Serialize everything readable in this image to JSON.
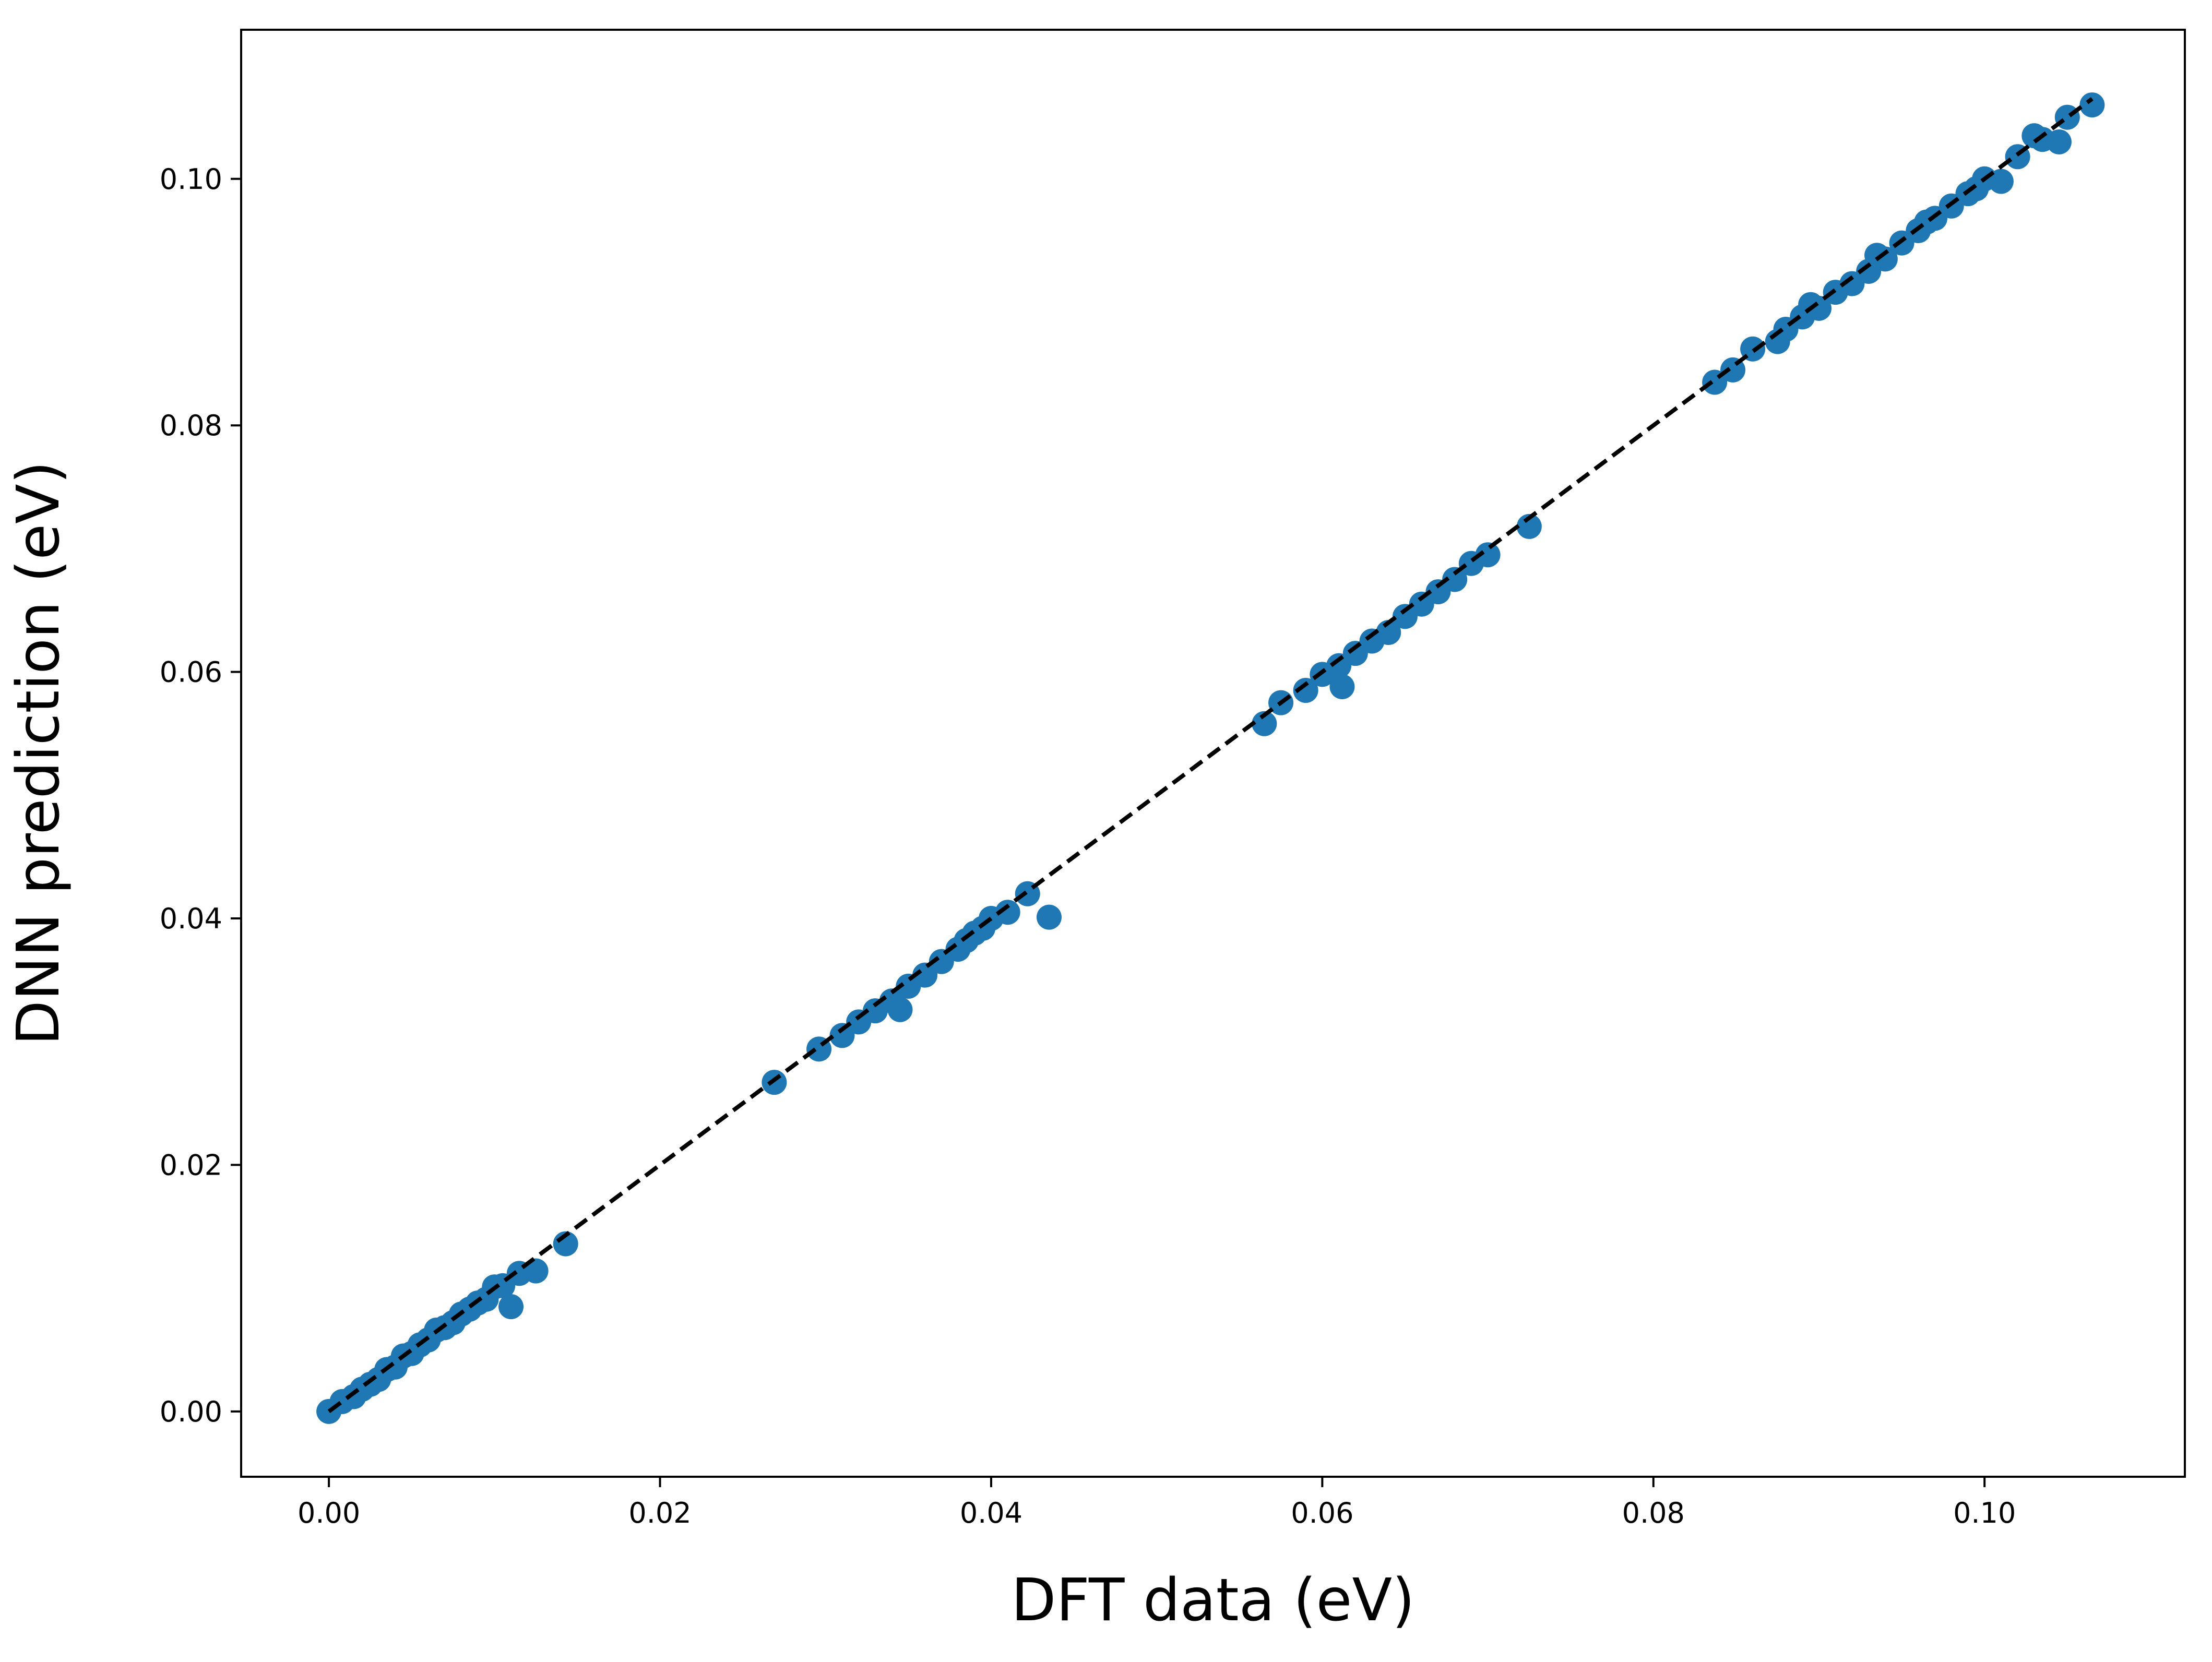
{
  "chart_data": {
    "type": "scatter",
    "title": "",
    "xlabel": "DFT data (eV)",
    "ylabel": "DNN prediction (eV)",
    "xlim": [
      -0.0053,
      0.1121
    ],
    "ylim": [
      -0.0053,
      0.1121
    ],
    "x_ticks": [
      0.0,
      0.02,
      0.04,
      0.06,
      0.08,
      0.1
    ],
    "y_ticks": [
      0.0,
      0.02,
      0.04,
      0.06,
      0.08,
      0.1
    ],
    "x_tick_labels": [
      "0.00",
      "0.02",
      "0.04",
      "0.06",
      "0.08",
      "0.10"
    ],
    "y_tick_labels": [
      "0.00",
      "0.02",
      "0.04",
      "0.06",
      "0.08",
      "0.10"
    ],
    "grid": false,
    "legend": "none",
    "colors": {
      "points": "#1f77b4",
      "reference_line": "#000000"
    },
    "reference_line": {
      "style": "dashed",
      "x": [
        0.0,
        0.1065
      ],
      "y": [
        0.0,
        0.1065
      ]
    },
    "series": [
      {
        "points": [
          [
            0.0,
            0.0
          ],
          [
            0.0008,
            0.0008
          ],
          [
            0.0015,
            0.0012
          ],
          [
            0.002,
            0.0018
          ],
          [
            0.0025,
            0.0022
          ],
          [
            0.003,
            0.0026
          ],
          [
            0.0035,
            0.0034
          ],
          [
            0.004,
            0.0036
          ],
          [
            0.0045,
            0.0045
          ],
          [
            0.005,
            0.0047
          ],
          [
            0.0055,
            0.0054
          ],
          [
            0.006,
            0.0058
          ],
          [
            0.0065,
            0.0066
          ],
          [
            0.007,
            0.0068
          ],
          [
            0.0075,
            0.0072
          ],
          [
            0.008,
            0.0079
          ],
          [
            0.0085,
            0.0083
          ],
          [
            0.009,
            0.0088
          ],
          [
            0.0095,
            0.0091
          ],
          [
            0.01,
            0.0101
          ],
          [
            0.0105,
            0.0102
          ],
          [
            0.011,
            0.0085
          ],
          [
            0.0115,
            0.0112
          ],
          [
            0.0125,
            0.0114
          ],
          [
            0.0143,
            0.0136
          ],
          [
            0.0269,
            0.0267
          ],
          [
            0.0296,
            0.0294
          ],
          [
            0.031,
            0.0305
          ],
          [
            0.032,
            0.0316
          ],
          [
            0.033,
            0.0325
          ],
          [
            0.034,
            0.0333
          ],
          [
            0.0345,
            0.0326
          ],
          [
            0.035,
            0.0345
          ],
          [
            0.036,
            0.0354
          ],
          [
            0.037,
            0.0365
          ],
          [
            0.038,
            0.0375
          ],
          [
            0.0385,
            0.0382
          ],
          [
            0.039,
            0.0388
          ],
          [
            0.0395,
            0.0392
          ],
          [
            0.04,
            0.04
          ],
          [
            0.041,
            0.0405
          ],
          [
            0.0422,
            0.042
          ],
          [
            0.0435,
            0.0401
          ],
          [
            0.0565,
            0.0558
          ],
          [
            0.0575,
            0.0575
          ],
          [
            0.059,
            0.0585
          ],
          [
            0.06,
            0.0598
          ],
          [
            0.061,
            0.0605
          ],
          [
            0.0612,
            0.0588
          ],
          [
            0.062,
            0.0615
          ],
          [
            0.063,
            0.0625
          ],
          [
            0.064,
            0.0632
          ],
          [
            0.065,
            0.0645
          ],
          [
            0.066,
            0.0655
          ],
          [
            0.067,
            0.0665
          ],
          [
            0.068,
            0.0675
          ],
          [
            0.069,
            0.0688
          ],
          [
            0.07,
            0.0695
          ],
          [
            0.0725,
            0.0718
          ],
          [
            0.0837,
            0.0835
          ],
          [
            0.0848,
            0.0845
          ],
          [
            0.086,
            0.0862
          ],
          [
            0.0875,
            0.0868
          ],
          [
            0.088,
            0.0878
          ],
          [
            0.089,
            0.0888
          ],
          [
            0.0895,
            0.0898
          ],
          [
            0.09,
            0.0895
          ],
          [
            0.091,
            0.0908
          ],
          [
            0.092,
            0.0915
          ],
          [
            0.093,
            0.0925
          ],
          [
            0.0935,
            0.0938
          ],
          [
            0.094,
            0.0935
          ],
          [
            0.095,
            0.0948
          ],
          [
            0.096,
            0.0958
          ],
          [
            0.0965,
            0.0965
          ],
          [
            0.097,
            0.0968
          ],
          [
            0.098,
            0.0978
          ],
          [
            0.099,
            0.0988
          ],
          [
            0.0995,
            0.0992
          ],
          [
            0.1,
            0.1
          ],
          [
            0.101,
            0.0998
          ],
          [
            0.102,
            0.1018
          ],
          [
            0.103,
            0.1035
          ],
          [
            0.1035,
            0.1032
          ],
          [
            0.1045,
            0.103
          ],
          [
            0.105,
            0.105
          ],
          [
            0.1065,
            0.106
          ]
        ]
      }
    ]
  }
}
